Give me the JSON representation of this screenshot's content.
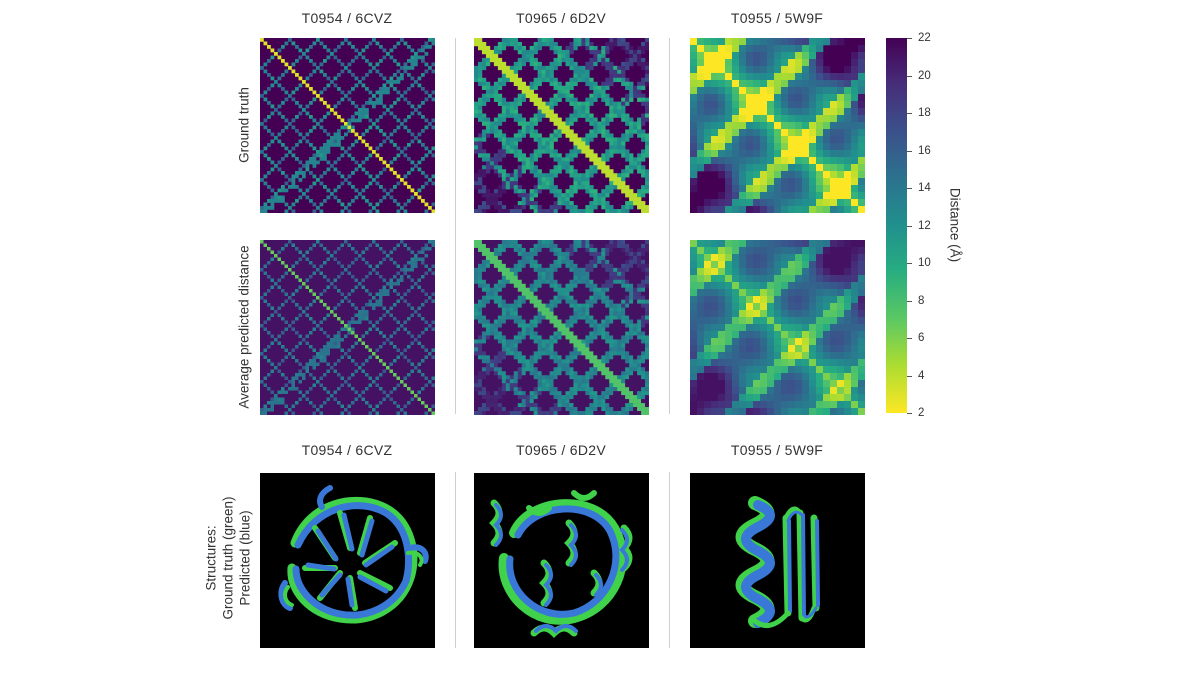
{
  "column_titles_top": [
    "T0954 / 6CVZ",
    "T0965 / 6D2V",
    "T0955 / 5W9F"
  ],
  "column_titles_bottom": [
    "T0954 / 6CVZ",
    "T0965 / 6D2V",
    "T0955 / 5W9F"
  ],
  "row_labels": {
    "ground_truth": "Ground truth",
    "predicted": "Average predicted distance",
    "structures_line1": "Structures:",
    "structures_line2": "Ground truth (green)",
    "structures_line3": "Predicted (blue)"
  },
  "colorbar": {
    "label": "Distance (Å)",
    "ticks": [
      "22",
      "20",
      "18",
      "16",
      "14",
      "12",
      "10",
      "8",
      "6",
      "4",
      "2"
    ],
    "range": [
      2,
      22
    ],
    "colormap": "viridis (reversed: yellow = 2, purple = 22)"
  },
  "colors": {
    "ground_truth_structure": "#3fd24a",
    "predicted_structure": "#3a78d8",
    "panel_background": "#000000",
    "map_high": "#440154",
    "map_low": "#fde725"
  }
}
